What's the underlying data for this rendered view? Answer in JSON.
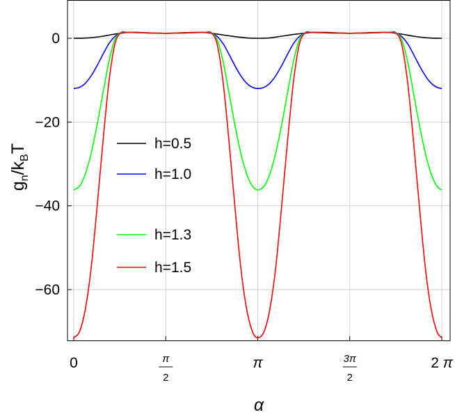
{
  "chart_data": {
    "type": "line",
    "title": "",
    "xlabel": "α",
    "ylabel_main": "g",
    "ylabel_sub_n": "n",
    "ylabel_mid": "/k",
    "ylabel_sub_B": "B",
    "ylabel_end": "T",
    "xlim": [
      0,
      6.2832
    ],
    "ylim": [
      -72,
      9
    ],
    "grid": true,
    "legend_position": "center-left",
    "x_ticks": [
      {
        "value": 0,
        "label": "0"
      },
      {
        "value": 1.5708,
        "label": "π/2",
        "numerator": "π",
        "denominator": "2"
      },
      {
        "value": 3.1416,
        "label": "π"
      },
      {
        "value": 4.7124,
        "label": "3π/2",
        "numerator": "3π",
        "denominator": "2"
      },
      {
        "value": 6.2832,
        "label": "2 π"
      }
    ],
    "y_ticks": [
      {
        "value": 0,
        "label": "0"
      },
      {
        "value": -20,
        "label": "−20"
      },
      {
        "value": -40,
        "label": "−40"
      },
      {
        "value": -60,
        "label": "−60"
      }
    ],
    "series": [
      {
        "name": "h=0.5",
        "color": "#000000",
        "x": [
          0,
          0.25,
          0.5,
          0.7,
          0.9,
          1.1,
          1.3,
          1.5708,
          1.8,
          2.05,
          2.25,
          2.45,
          2.7,
          2.95,
          3.1416,
          3.35,
          3.55,
          3.8,
          4.05,
          4.3,
          4.5,
          4.7124,
          4.95,
          5.2,
          5.4,
          5.6,
          5.8,
          6.05,
          6.2832
        ],
        "y": [
          0,
          0.1,
          0.5,
          1.0,
          1.35,
          1.4,
          1.3,
          1.2,
          1.3,
          1.4,
          1.35,
          1.0,
          0.5,
          0.1,
          0,
          0.1,
          0.5,
          1.0,
          1.35,
          1.4,
          1.3,
          1.2,
          1.3,
          1.4,
          1.35,
          1.0,
          0.5,
          0.1,
          0
        ]
      },
      {
        "name": "h=1.0",
        "color": "#0000ff",
        "x": [
          0,
          0.1,
          0.2,
          0.3,
          0.4,
          0.5,
          0.6,
          0.7,
          0.8,
          0.9,
          1.0,
          1.1,
          1.3,
          1.5708,
          1.85,
          2.05,
          2.15,
          2.25,
          2.35,
          2.45,
          2.55,
          2.65,
          2.75,
          2.85,
          2.95,
          3.05,
          3.1416,
          3.25,
          3.35,
          3.45,
          3.55,
          3.65,
          3.75,
          3.85,
          3.95,
          4.05,
          4.15,
          4.3,
          4.5,
          4.7124,
          4.95,
          5.2,
          5.3,
          5.4,
          5.5,
          5.6,
          5.7,
          5.8,
          5.9,
          6.0,
          6.1,
          6.2,
          6.2832
        ],
        "y": [
          -12,
          -11.7,
          -10.7,
          -8.9,
          -6.5,
          -3.8,
          -1.3,
          0.4,
          1.2,
          1.4,
          1.4,
          1.35,
          1.25,
          1.2,
          1.25,
          1.35,
          1.4,
          1.4,
          1.2,
          0.4,
          -1.3,
          -3.8,
          -6.5,
          -8.9,
          -10.7,
          -11.7,
          -12,
          -11.7,
          -10.7,
          -8.9,
          -6.5,
          -3.8,
          -1.3,
          0.4,
          1.2,
          1.4,
          1.4,
          1.3,
          1.25,
          1.2,
          1.25,
          1.35,
          1.4,
          1.4,
          1.2,
          0.4,
          -1.3,
          -3.8,
          -6.5,
          -8.9,
          -10.7,
          -11.7,
          -12
        ]
      },
      {
        "name": "h=1.3",
        "color": "#00ff00",
        "x": [
          0,
          0.1,
          0.2,
          0.3,
          0.4,
          0.5,
          0.6,
          0.7,
          0.8,
          0.9,
          1.0,
          1.2,
          1.5708,
          1.95,
          2.15,
          2.25,
          2.35,
          2.45,
          2.55,
          2.65,
          2.75,
          2.85,
          2.95,
          3.05,
          3.1416,
          3.25,
          3.35,
          3.45,
          3.55,
          3.65,
          3.75,
          3.85,
          3.95,
          4.05,
          4.25,
          4.7124,
          5.1,
          5.3,
          5.4,
          5.5,
          5.6,
          5.7,
          5.8,
          5.9,
          6.0,
          6.1,
          6.2,
          6.2832
        ],
        "y": [
          -36.2,
          -35.3,
          -32.3,
          -27.3,
          -20.6,
          -13.0,
          -5.6,
          -0.4,
          1.3,
          1.4,
          1.4,
          1.3,
          1.2,
          1.3,
          1.4,
          1.4,
          1.3,
          -0.4,
          -5.6,
          -13.0,
          -20.6,
          -27.3,
          -32.3,
          -35.3,
          -36.2,
          -35.3,
          -32.3,
          -27.3,
          -20.6,
          -13.0,
          -5.6,
          -0.4,
          1.3,
          1.4,
          1.3,
          1.2,
          1.3,
          1.4,
          1.4,
          1.3,
          -0.4,
          -5.6,
          -13.0,
          -20.6,
          -27.3,
          -32.3,
          -35.3,
          -36.2
        ]
      },
      {
        "name": "h=1.5",
        "color": "#ff0000",
        "x": [
          0,
          0.1,
          0.2,
          0.3,
          0.4,
          0.5,
          0.6,
          0.7,
          0.8,
          0.9,
          1.0,
          1.2,
          1.5708,
          1.95,
          2.15,
          2.25,
          2.35,
          2.45,
          2.55,
          2.65,
          2.75,
          2.85,
          2.95,
          3.05,
          3.1416,
          3.25,
          3.35,
          3.45,
          3.55,
          3.65,
          3.75,
          3.85,
          3.95,
          4.05,
          4.25,
          4.7124,
          5.1,
          5.3,
          5.4,
          5.5,
          5.6,
          5.7,
          5.8,
          5.9,
          6.0,
          6.1,
          6.2,
          6.2832
        ],
        "y": [
          -71.5,
          -70.0,
          -64.5,
          -54.5,
          -40.0,
          -24.5,
          -10.5,
          -1.5,
          1.3,
          1.4,
          1.4,
          1.3,
          1.2,
          1.3,
          1.4,
          1.4,
          1.3,
          -1.5,
          -10.5,
          -24.5,
          -40.0,
          -54.5,
          -64.5,
          -70.0,
          -71.5,
          -70.0,
          -64.5,
          -54.5,
          -40.0,
          -24.5,
          -10.5,
          -1.5,
          1.3,
          1.4,
          1.3,
          1.2,
          1.3,
          1.4,
          1.4,
          1.3,
          -1.5,
          -10.5,
          -24.5,
          -40.0,
          -54.5,
          -64.5,
          -70.0,
          -71.5
        ]
      }
    ]
  }
}
